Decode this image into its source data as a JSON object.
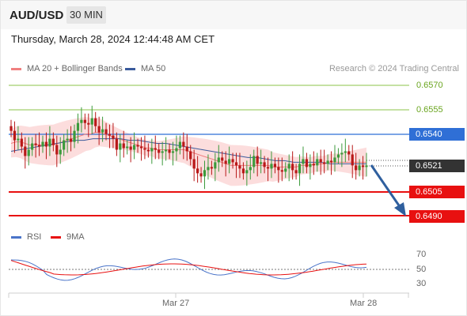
{
  "header": {
    "symbol": "AUD/USD",
    "timeframe": "30 MIN",
    "datetime": "Thursday, March 28, 2024 12:44:48 AM CET"
  },
  "legend": {
    "ma20": {
      "label": "MA 20 + Bollinger Bands",
      "color": "#f08080"
    },
    "ma50": {
      "label": "MA 50",
      "color": "#3a5a9c"
    },
    "credit": "Research © 2024 Trading Central"
  },
  "levels": {
    "r3": {
      "value": "0.6570",
      "kind": "resistance",
      "color": "#8bc34a"
    },
    "r2": {
      "value": "0.6555",
      "kind": "resistance",
      "color": "#8bc34a"
    },
    "r1": {
      "value": "0.6540",
      "kind": "pivot",
      "color": "#2f6fd6"
    },
    "last": {
      "value": "0.6521",
      "kind": "last price",
      "color": "#333333"
    },
    "s1": {
      "value": "0.6505",
      "kind": "support",
      "color": "#e81010"
    },
    "s2": {
      "value": "0.6490",
      "kind": "support",
      "color": "#e81010"
    }
  },
  "rsi_panel": {
    "rsi_label": "RSI",
    "ma_label": "9MA",
    "rsi_color": "#4a74c9",
    "ma_color": "#e81010",
    "ticks": [
      "70",
      "50",
      "30"
    ]
  },
  "x_axis": {
    "labels": [
      "Mar 27",
      "Mar 28"
    ]
  },
  "chart_data": {
    "type": "candlestick",
    "y_range": [
      0.6485,
      0.6577
    ],
    "candles_close": [
      0.6543,
      0.6537,
      0.6538,
      0.6533,
      0.6527,
      0.6531,
      0.6535,
      0.6534,
      0.6533,
      0.6536,
      0.6533,
      0.6538,
      0.6534,
      0.6528,
      0.6531,
      0.6537,
      0.6538,
      0.6536,
      0.6543,
      0.6548,
      0.655,
      0.6548,
      0.6547,
      0.6551,
      0.6546,
      0.6542,
      0.6544,
      0.6541,
      0.654,
      0.6538,
      0.6531,
      0.6535,
      0.6532,
      0.6533,
      0.6531,
      0.6534,
      0.6533,
      0.6532,
      0.6531,
      0.653,
      0.6532,
      0.6531,
      0.6529,
      0.653,
      0.6531,
      0.6529,
      0.653,
      0.6532,
      0.6536,
      0.6533,
      0.653,
      0.6525,
      0.6519,
      0.6516,
      0.6514,
      0.6518,
      0.652,
      0.6519,
      0.6523,
      0.6526,
      0.6524,
      0.6522,
      0.6525,
      0.6523,
      0.6521,
      0.6519,
      0.6516,
      0.6518,
      0.652,
      0.6527,
      0.6522,
      0.6523,
      0.652,
      0.6519,
      0.6522,
      0.652,
      0.6518,
      0.6517,
      0.6519,
      0.6522,
      0.6518,
      0.6516,
      0.6522,
      0.6525,
      0.652,
      0.6522,
      0.6521,
      0.6525,
      0.6523,
      0.6522,
      0.6524,
      0.6523,
      0.6526,
      0.6528,
      0.6529,
      0.653,
      0.6528,
      0.6521,
      0.6518,
      0.6521,
      0.652,
      0.6521
    ],
    "ma20": [
      0.6535,
      0.6536,
      0.6536,
      0.6535,
      0.6534,
      0.6534,
      0.6534,
      0.6534,
      0.6534,
      0.6534,
      0.6535,
      0.6536,
      0.6537,
      0.6538,
      0.6539,
      0.654,
      0.6541,
      0.6541,
      0.6542,
      0.6542,
      0.6541,
      0.654,
      0.6539,
      0.6538,
      0.6537,
      0.6536,
      0.6535,
      0.6534,
      0.6533,
      0.6532,
      0.6532,
      0.6531,
      0.6531,
      0.6531,
      0.6531,
      0.6531,
      0.6531,
      0.6531,
      0.653,
      0.6529,
      0.6528,
      0.6527,
      0.6526,
      0.6525,
      0.6524,
      0.6523,
      0.6522,
      0.6521,
      0.6521,
      0.6521,
      0.6521,
      0.6521,
      0.6521,
      0.6521,
      0.6521,
      0.6521,
      0.652,
      0.652,
      0.652,
      0.652,
      0.652,
      0.652,
      0.6521,
      0.6521,
      0.6521,
      0.6522,
      0.6522,
      0.6522,
      0.6523,
      0.6523,
      0.6523,
      0.6523,
      0.6523,
      0.6523,
      0.6523,
      0.6523,
      0.6523
    ],
    "ma50": [
      0.653,
      0.6531,
      0.6532,
      0.6533,
      0.6534,
      0.6535,
      0.6536,
      0.6537,
      0.6537,
      0.6538,
      0.6538,
      0.6538,
      0.6538,
      0.6537,
      0.6537,
      0.6536,
      0.6535,
      0.6535,
      0.6534,
      0.6533,
      0.6532,
      0.6531,
      0.653,
      0.6529,
      0.6528,
      0.6527,
      0.6526,
      0.6526,
      0.6525,
      0.6524,
      0.6524,
      0.6523,
      0.6523,
      0.6523,
      0.6523,
      0.6522,
      0.6522,
      0.6522,
      0.6522,
      0.6522
    ]
  }
}
